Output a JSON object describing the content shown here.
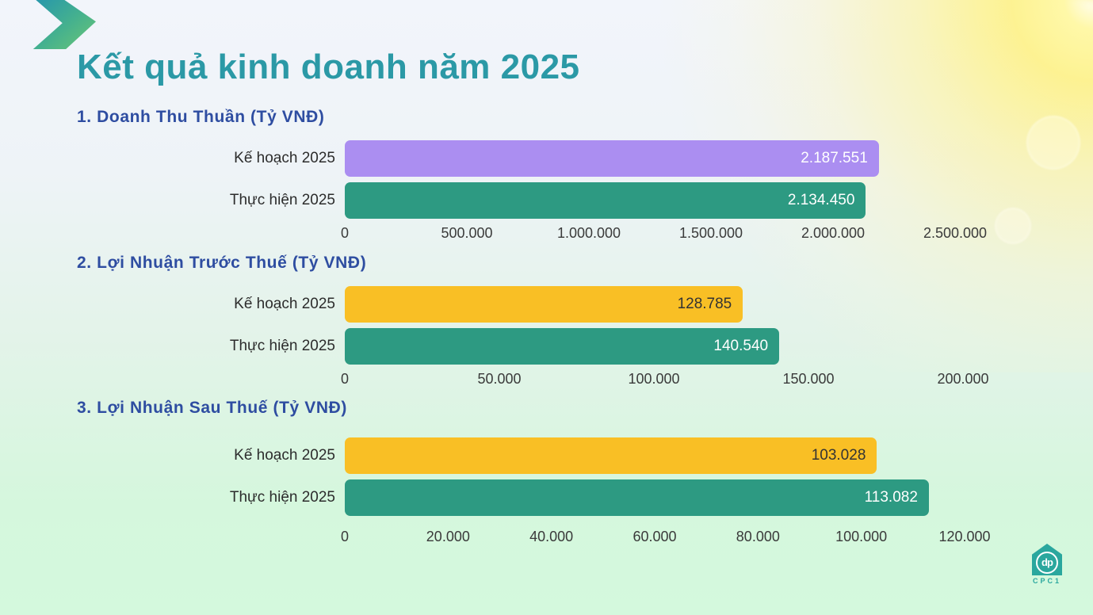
{
  "slide": {
    "title": "Kết quả kinh doanh năm 2025"
  },
  "colors": {
    "title": "#2b99a6",
    "section_heading": "#2e4da1",
    "plan_bar_revenue": "#ab8ef1",
    "plan_bar_profit": "#f9bf25",
    "actual_bar": "#2d9a82",
    "background_top": "#f2f5fb",
    "background_bottom": "#d4f9dd",
    "sun_glow": "#fff280",
    "arrow_gradient_start": "#2898ab",
    "arrow_gradient_end": "#68c477"
  },
  "logo": {
    "monogram": "dp",
    "caption": "CPC1",
    "color": "#2aa79e"
  },
  "chart_data": [
    {
      "type": "bar",
      "orientation": "horizontal",
      "title": "1. Doanh Thu Thuần (Tỷ VNĐ)",
      "categories": [
        "Kế hoạch 2025",
        "Thực hiện 2025"
      ],
      "values": [
        2187551,
        2134450
      ],
      "value_labels": [
        "2.187.551",
        "2.134.450"
      ],
      "bar_colors": [
        "#ab8ef1",
        "#2d9a82"
      ],
      "value_label_colors": [
        "#ffffff",
        "#ffffff"
      ],
      "xlim": [
        0,
        2500000
      ],
      "tick_values": [
        0,
        500000,
        1000000,
        1500000,
        2000000,
        2500000
      ],
      "tick_labels": [
        "0",
        "500.000",
        "1.000.000",
        "1.500.000",
        "2.000.000",
        "2.500.000"
      ],
      "grid": false,
      "legend": false
    },
    {
      "type": "bar",
      "orientation": "horizontal",
      "title": "2. Lợi Nhuận Trước Thuế (Tỷ VNĐ)",
      "categories": [
        "Kế hoạch 2025",
        "Thực hiện 2025"
      ],
      "values": [
        128785,
        140540
      ],
      "value_labels": [
        "128.785",
        "140.540"
      ],
      "bar_colors": [
        "#f9bf25",
        "#2d9a82"
      ],
      "value_label_colors": [
        "#333333",
        "#ffffff"
      ],
      "xlim": [
        0,
        200000
      ],
      "tick_values": [
        0,
        50000,
        100000,
        150000,
        200000
      ],
      "tick_labels": [
        "0",
        "50.000",
        "100.000",
        "150.000",
        "200.000"
      ],
      "grid": false,
      "legend": false
    },
    {
      "type": "bar",
      "orientation": "horizontal",
      "title": "3. Lợi Nhuận Sau Thuế (Tỷ VNĐ)",
      "categories": [
        "Kế hoạch 2025",
        "Thực hiện 2025"
      ],
      "values": [
        103028,
        113082
      ],
      "value_labels": [
        "103.028",
        "113.082"
      ],
      "bar_colors": [
        "#f9bf25",
        "#2d9a82"
      ],
      "value_label_colors": [
        "#333333",
        "#ffffff"
      ],
      "xlim": [
        0,
        120000
      ],
      "tick_values": [
        0,
        20000,
        40000,
        60000,
        80000,
        100000,
        120000
      ],
      "tick_labels": [
        "0",
        "20.000",
        "40.000",
        "60.000",
        "80.000",
        "100.000",
        "120.000"
      ],
      "grid": false,
      "legend": false
    }
  ]
}
